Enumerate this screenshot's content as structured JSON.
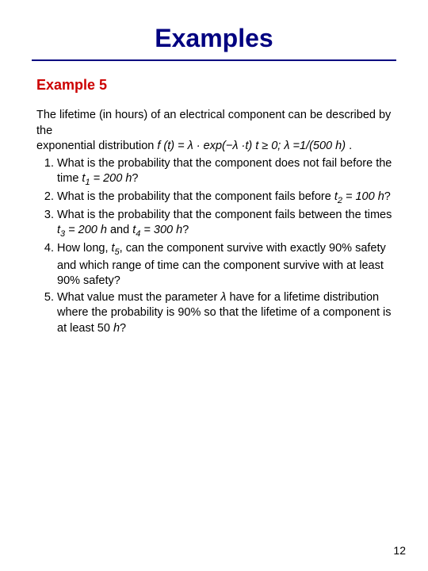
{
  "colors": {
    "title": "#000080",
    "rule": "#000080",
    "subtitle": "#cc0000",
    "body": "#000000",
    "background": "#ffffff"
  },
  "typography": {
    "title_fontsize": 32,
    "subtitle_fontsize": 18,
    "body_fontsize": 14.5,
    "font_family": "Arial"
  },
  "title": "Examples",
  "subtitle": "Example 5",
  "intro": {
    "line1": "The lifetime (in hours) of an electrical component can be described by the",
    "line2_prefix": "exponential distribution ",
    "formula": "f (t) = λ · exp(−λ ·t) t ≥ 0; λ =1/(500 h) ",
    "line2_suffix": "."
  },
  "questions": [
    {
      "pre": "What is the probability that the component does not fail before the time ",
      "var": "t",
      "sub": "1",
      "mid": " = 200 h",
      "post": "?"
    },
    {
      "pre": "What is the probability that the component fails before ",
      "var": "t",
      "sub": "2",
      "mid": " = 100 h",
      "post": "?"
    },
    {
      "pre": "What is the probability that the component fails between the times ",
      "var": "t",
      "sub": "3",
      "mid": " = 200 h",
      "conj": " and ",
      "var2": "t",
      "sub2": "4",
      "mid2": " = 300 h",
      "post": "?"
    },
    {
      "pre": "How long, ",
      "var": "t",
      "sub": "5",
      "post": ", can the component survive with exactly 90% safety and which range of time can the component survive with at least 90% safety?"
    },
    {
      "pre": "What value must the parameter ",
      "var": "λ",
      "post": " have for a lifetime distribution where the probability is 90% so that the lifetime of a component is at least 50 ",
      "tailvar": "h",
      "tailpost": "?"
    }
  ],
  "page_number": "12"
}
